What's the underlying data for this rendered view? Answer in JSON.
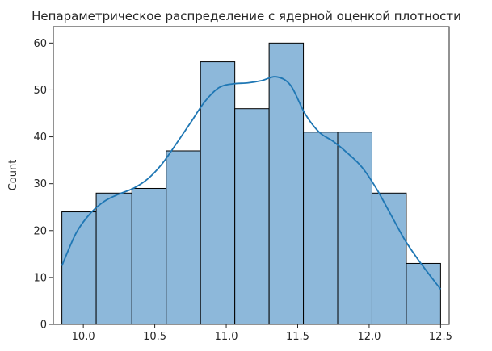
{
  "chart_data": {
    "type": "bar",
    "title": "Непараметрическое распределение с ядерной оценкой плотности",
    "xlabel": "",
    "ylabel": "Count",
    "bins": [
      {
        "x0": 9.85,
        "x1": 10.09,
        "count": 24
      },
      {
        "x0": 10.09,
        "x1": 10.34,
        "count": 28
      },
      {
        "x0": 10.34,
        "x1": 10.58,
        "count": 29
      },
      {
        "x0": 10.58,
        "x1": 10.82,
        "count": 37
      },
      {
        "x0": 10.82,
        "x1": 11.06,
        "count": 56
      },
      {
        "x0": 11.06,
        "x1": 11.3,
        "count": 46
      },
      {
        "x0": 11.3,
        "x1": 11.54,
        "count": 60
      },
      {
        "x0": 11.54,
        "x1": 11.78,
        "count": 41
      },
      {
        "x0": 11.78,
        "x1": 12.02,
        "count": 41
      },
      {
        "x0": 12.02,
        "x1": 12.26,
        "count": 28
      },
      {
        "x0": 12.26,
        "x1": 12.5,
        "count": 13
      }
    ],
    "kde": {
      "x": [
        9.85,
        9.95,
        10.05,
        10.15,
        10.25,
        10.35,
        10.45,
        10.55,
        10.65,
        10.75,
        10.85,
        10.95,
        11.05,
        11.15,
        11.25,
        11.35,
        11.45,
        11.55,
        11.65,
        11.75,
        11.85,
        11.95,
        12.05,
        12.15,
        12.25,
        12.35,
        12.5
      ],
      "y": [
        12.5,
        19.5,
        23.7,
        26.3,
        27.8,
        29.0,
        31.0,
        34.2,
        38.5,
        43.0,
        47.5,
        50.5,
        51.3,
        51.5,
        52.0,
        52.8,
        51.0,
        45.0,
        41.0,
        39.0,
        36.5,
        33.5,
        29.0,
        23.5,
        18.0,
        13.5,
        7.5
      ]
    },
    "xlim": [
      9.79,
      12.56
    ],
    "ylim": [
      0,
      63.5
    ],
    "xticks": [
      10.0,
      10.5,
      11.0,
      11.5,
      12.0,
      12.5
    ],
    "xtick_labels": [
      "10.0",
      "10.5",
      "11.0",
      "11.5",
      "12.0",
      "12.5"
    ],
    "yticks": [
      0,
      10,
      20,
      30,
      40,
      50,
      60
    ],
    "ytick_labels": [
      "0",
      "10",
      "20",
      "30",
      "40",
      "50",
      "60"
    ],
    "grid": false,
    "colors": {
      "bar_fill": "#8db8da",
      "bar_edge": "#000000",
      "kde_line": "#1f77b4",
      "axis": "#262626"
    }
  }
}
